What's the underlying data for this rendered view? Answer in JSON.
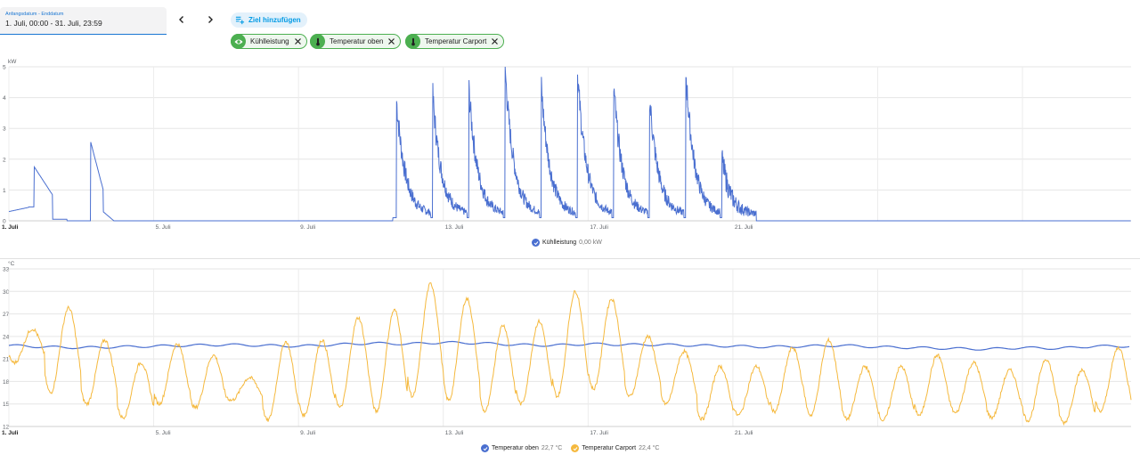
{
  "date_picker": {
    "label": "Anfangsdatum - Enddatum",
    "value": "1. Juli, 00:00 - 31. Juli, 23:59"
  },
  "nav": {
    "prev_icon": "chevron-left-icon",
    "next_icon": "chevron-right-icon"
  },
  "add_target": {
    "label": "Ziel hinzufügen",
    "icon": "playlist-plus-icon"
  },
  "chips": [
    {
      "label": "Kühlleistung",
      "icon": "eye-icon"
    },
    {
      "label": "Temperatur oben",
      "icon": "thermometer-icon"
    },
    {
      "label": "Temperatur Carport",
      "icon": "thermometer-icon"
    }
  ],
  "colors": {
    "accent": "#1976d2",
    "chip_green": "#4caf50",
    "series_blue": "#4a6fd0",
    "series_orange": "#f5b93e"
  },
  "x_ticks": [
    "1. Juli",
    "5. Juli",
    "9. Juli",
    "13. Juli",
    "17. Juli",
    "21. Juli"
  ],
  "chart_data": [
    {
      "type": "line",
      "unit": "kW",
      "ylim": [
        0,
        5
      ],
      "y_ticks": [
        0,
        1,
        2,
        3,
        4,
        5
      ],
      "x_range_days": [
        1,
        32
      ],
      "grid": true,
      "legend_placement": "bottom-center",
      "series": [
        {
          "name": "Kühlleistung",
          "legend_value": "0,00 kW",
          "color": "#4a6fd0",
          "peaks": [
            {
              "day": 1.7,
              "value": 1.75
            },
            {
              "day": 3.3,
              "value": 2.6
            },
            {
              "day": 11.7,
              "value": 3.85
            },
            {
              "day": 12.7,
              "value": 4.0
            },
            {
              "day": 13.7,
              "value": 4.2
            },
            {
              "day": 14.7,
              "value": 4.9
            },
            {
              "day": 15.7,
              "value": 4.3
            },
            {
              "day": 16.7,
              "value": 4.75
            },
            {
              "day": 17.7,
              "value": 4.3
            },
            {
              "day": 18.7,
              "value": 3.8
            },
            {
              "day": 19.7,
              "value": 4.6
            },
            {
              "day": 20.7,
              "value": 1.8
            }
          ]
        }
      ]
    },
    {
      "type": "line",
      "unit": "°C",
      "ylim": [
        12,
        33
      ],
      "y_ticks": [
        12,
        15,
        18,
        21,
        24,
        27,
        30,
        33
      ],
      "x_range_days": [
        1,
        32
      ],
      "grid": true,
      "legend_placement": "bottom-center",
      "series": [
        {
          "name": "Temperatur oben",
          "legend_value": "22,7 °C",
          "color": "#4a6fd0",
          "daily_values": [
            22.8,
            22.6,
            22.5,
            22.6,
            22.7,
            22.8,
            22.9,
            22.8,
            22.7,
            22.9,
            23.1,
            23.0,
            23.2,
            23.1,
            22.9,
            22.8,
            23.0,
            22.9,
            22.9,
            22.8,
            22.7,
            22.6,
            22.7,
            22.8,
            22.6,
            22.5,
            22.4,
            22.3,
            22.5,
            22.4,
            22.7
          ]
        },
        {
          "name": "Temperatur Carport",
          "legend_value": "22,4 °C",
          "color": "#f5b93e",
          "daily_max": [
            25.0,
            27.8,
            23.5,
            20.5,
            23.0,
            21.5,
            18.5,
            23.3,
            23.5,
            26.5,
            27.5,
            31.0,
            29.0,
            25.5,
            26.0,
            30.0,
            29.0,
            24.0,
            22.0,
            20.0,
            20.0,
            22.5,
            23.5,
            20.0,
            20.0,
            21.5,
            20.5,
            19.5,
            21.0,
            19.5,
            22.5
          ],
          "daily_min": [
            20.5,
            16.5,
            15.0,
            13.2,
            15.0,
            14.5,
            15.5,
            12.8,
            13.5,
            14.5,
            14.0,
            16.0,
            15.5,
            14.0,
            15.0,
            16.0,
            17.0,
            16.0,
            15.0,
            13.0,
            13.5,
            14.0,
            13.5,
            13.0,
            12.8,
            13.5,
            13.8,
            13.2,
            12.8,
            12.5,
            14.0
          ]
        }
      ]
    }
  ]
}
